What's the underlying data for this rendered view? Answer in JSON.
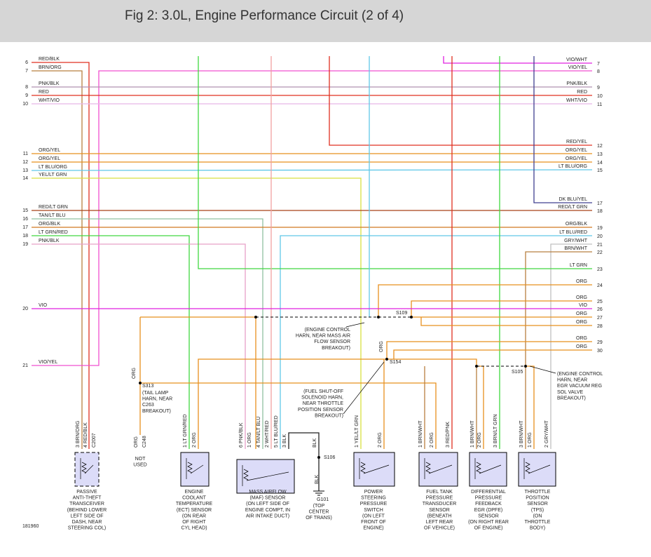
{
  "header": {
    "title": "Fig 2: 3.0L, Engine Performance Circuit (2 of 4)"
  },
  "left_wires": [
    {
      "number": 6,
      "label": "RED/BLK"
    },
    {
      "number": 7,
      "label": "BRN/ORG"
    },
    {
      "number": 8,
      "label": "PNK/BLK"
    },
    {
      "number": 9,
      "label": "RED"
    },
    {
      "number": 10,
      "label": "WHT/VIO"
    },
    {
      "number": 11,
      "label": "ORG/YEL"
    },
    {
      "number": 12,
      "label": "ORG/YEL"
    },
    {
      "number": 13,
      "label": "LT BLU/ORG"
    },
    {
      "number": 14,
      "label": "YEL/LT GRN"
    },
    {
      "number": 15,
      "label": "RED/LT GRN"
    },
    {
      "number": 16,
      "label": "TAN/LT BLU"
    },
    {
      "number": 17,
      "label": "ORG/BLK"
    },
    {
      "number": 18,
      "label": "LT GRN/RED"
    },
    {
      "number": 19,
      "label": "PNK/BLK"
    },
    {
      "number": 20,
      "label": "VIO"
    },
    {
      "number": 21,
      "label": "VIO/YEL"
    }
  ],
  "right_wires": [
    {
      "number": 7,
      "label": "VIO/WHT"
    },
    {
      "number": 8,
      "label": "VIO/YEL"
    },
    {
      "number": 9,
      "label": "PNK/BLK"
    },
    {
      "number": 10,
      "label": "RED"
    },
    {
      "number": 11,
      "label": "WHT/VIO"
    },
    {
      "number": 12,
      "label": "RED/YEL"
    },
    {
      "number": 13,
      "label": "ORG/YEL"
    },
    {
      "number": 14,
      "label": "ORG/YEL"
    },
    {
      "number": 15,
      "label": "LT BLU/ORG"
    },
    {
      "number": 17,
      "label": "DK BLU/YEL"
    },
    {
      "number": 18,
      "label": "RED/LT GRN"
    },
    {
      "number": 19,
      "label": "ORG/BLK"
    },
    {
      "number": 20,
      "label": "LT BLU/RED"
    },
    {
      "number": 21,
      "label": "GRY/WHT"
    },
    {
      "number": 22,
      "label": "BRN/WHT"
    },
    {
      "number": 23,
      "label": "LT GRN"
    },
    {
      "number": 24,
      "label": "ORG"
    },
    {
      "number": 25,
      "label": "ORG"
    },
    {
      "number": 26,
      "label": "VIO"
    },
    {
      "number": 27,
      "label": "ORG"
    },
    {
      "number": 28,
      "label": "ORG"
    },
    {
      "number": 29,
      "label": "ORG"
    },
    {
      "number": 30,
      "label": "ORG"
    }
  ],
  "splices": [
    "S109",
    "S154",
    "S105",
    "S313",
    "S106",
    "G101"
  ],
  "notes": [
    {
      "lines": [
        "(ENGINE CONTROL",
        "HARN, NEAR MASS AIR",
        "FLOW SENSOR",
        "BREAKOUT)"
      ]
    },
    {
      "lines": [
        "(TAIL LAMP",
        "HARN, NEAR",
        "C263",
        "BREAKOUT)"
      ]
    },
    {
      "lines": [
        "(FUEL SHUT-OFF",
        "SOLENOID HARN,",
        "NEAR THROTTLE",
        "POSITION SENSOR",
        "BREAKOUT)"
      ]
    },
    {
      "lines": [
        "(ENGINE CONTROL",
        "HARN, NEAR",
        "EGR VACUUM REG",
        "SOL VALVE",
        "BREAKOUT)"
      ]
    },
    {
      "lines": [
        "NOT",
        "USED"
      ]
    },
    {
      "lines": [
        "(TOP",
        "CENTER",
        "OF TRANS)"
      ]
    }
  ],
  "wire_tags": [
    "ORG",
    "ORG",
    "BLK"
  ],
  "components": [
    {
      "pins": [
        "3 BRN/ORG",
        "4 RED/BLK",
        "C2007"
      ],
      "label": [
        "PASSIVE",
        "ANTI-THEFT",
        "TRANSCEIVER",
        "(BEHIND LOWER",
        "LEFT SIDE OF",
        "DASH, NEAR",
        "STEERING COL)"
      ]
    },
    {
      "pins": [
        "ORG",
        "C248"
      ],
      "label": []
    },
    {
      "pins": [
        "1 LT GRN/RED",
        "2 ORG"
      ],
      "label": [
        "ENGINE",
        "COOLANT",
        "TEMPERATURE",
        "(ECT) SENSOR",
        "(ON REAR",
        "OF RIGHT",
        "CYL HEAD)"
      ]
    },
    {
      "pins": [
        "6 PNK/BLK",
        "1 ORG",
        "4 TAN/LT BLU",
        "2 WHT/RED",
        "5 LT BLU/RED",
        "3 BLK"
      ],
      "label": [
        "MASS AIRFLOW",
        "(MAF) SENSOR",
        "(ON LEFT SIDE OF",
        "ENGINE COMPT, IN",
        "AIR INTAKE DUCT)"
      ]
    },
    {
      "pins": [
        "BLK"
      ],
      "label": []
    },
    {
      "pins": [
        "1 YEL/LT GRN",
        "2 ORG"
      ],
      "label": [
        "POWER",
        "STEERING",
        "PRESSURE",
        "SWITCH",
        "(ON LEFT",
        "FRONT OF",
        "ENGINE)"
      ]
    },
    {
      "pins": [
        "1 BRN/WHT",
        "2 ORG",
        "3 RED/PNK"
      ],
      "label": [
        "FUEL TANK",
        "PRESSURE",
        "TRANSDUCER",
        "SENSOR",
        "(BENEATH",
        "LEFT REAR",
        "OF VEHICLE)"
      ]
    },
    {
      "pins": [
        "1 BRN/WHT",
        "2 ORG",
        "3 BRN/LT GRN"
      ],
      "label": [
        "DIFFERENTIAL",
        "PRESSURE",
        "FEEDBACK",
        "EGR (DPFE)",
        "SENSOR",
        "(ON RIGHT REAR",
        "OF ENGINE)"
      ]
    },
    {
      "pins": [
        "3 BRN/WHT",
        "1 ORG",
        "2 GRY/WHT"
      ],
      "label": [
        "THROTTLE",
        "POSITION",
        "SENSOR",
        "(TPS)",
        "(ON",
        "THROTTLE",
        "BODY)"
      ]
    }
  ],
  "figure_id": "181960"
}
